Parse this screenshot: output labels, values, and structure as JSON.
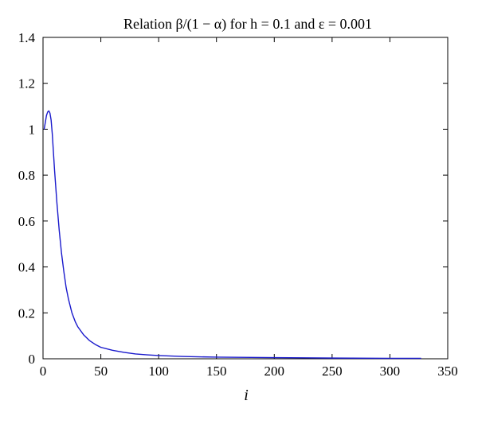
{
  "chart_data": {
    "type": "line",
    "title": "Relation β/(1 − α) for h = 0.1 and ε = 0.001",
    "xlabel": "i",
    "ylabel": "",
    "xlim": [
      0,
      350
    ],
    "ylim": [
      0,
      1.4
    ],
    "xticks": [
      0,
      50,
      100,
      150,
      200,
      250,
      300,
      350
    ],
    "yticks": [
      0,
      0.2,
      0.4,
      0.6,
      0.8,
      1,
      1.2,
      1.4
    ],
    "xtick_labels": [
      "0",
      "50",
      "100",
      "150",
      "200",
      "250",
      "300",
      "350"
    ],
    "ytick_labels": [
      "0",
      "0.2",
      "0.4",
      "0.6",
      "0.8",
      "1",
      "1.2",
      "1.4"
    ],
    "grid": false,
    "legend": "none",
    "series": [
      {
        "color": "#1a1acc",
        "x": [
          1,
          2,
          3,
          4,
          5,
          6,
          7,
          8,
          9,
          10,
          12,
          14,
          16,
          18,
          20,
          22,
          25,
          28,
          30,
          35,
          40,
          45,
          50,
          60,
          70,
          80,
          90,
          100,
          120,
          150,
          200,
          250,
          300,
          327
        ],
        "y": [
          1.0,
          1.03,
          1.06,
          1.075,
          1.08,
          1.07,
          1.04,
          0.98,
          0.9,
          0.82,
          0.68,
          0.56,
          0.46,
          0.38,
          0.31,
          0.26,
          0.2,
          0.16,
          0.14,
          0.105,
          0.08,
          0.063,
          0.05,
          0.037,
          0.028,
          0.021,
          0.017,
          0.014,
          0.01,
          0.007,
          0.005,
          0.003,
          0.002,
          0.002
        ]
      }
    ]
  }
}
